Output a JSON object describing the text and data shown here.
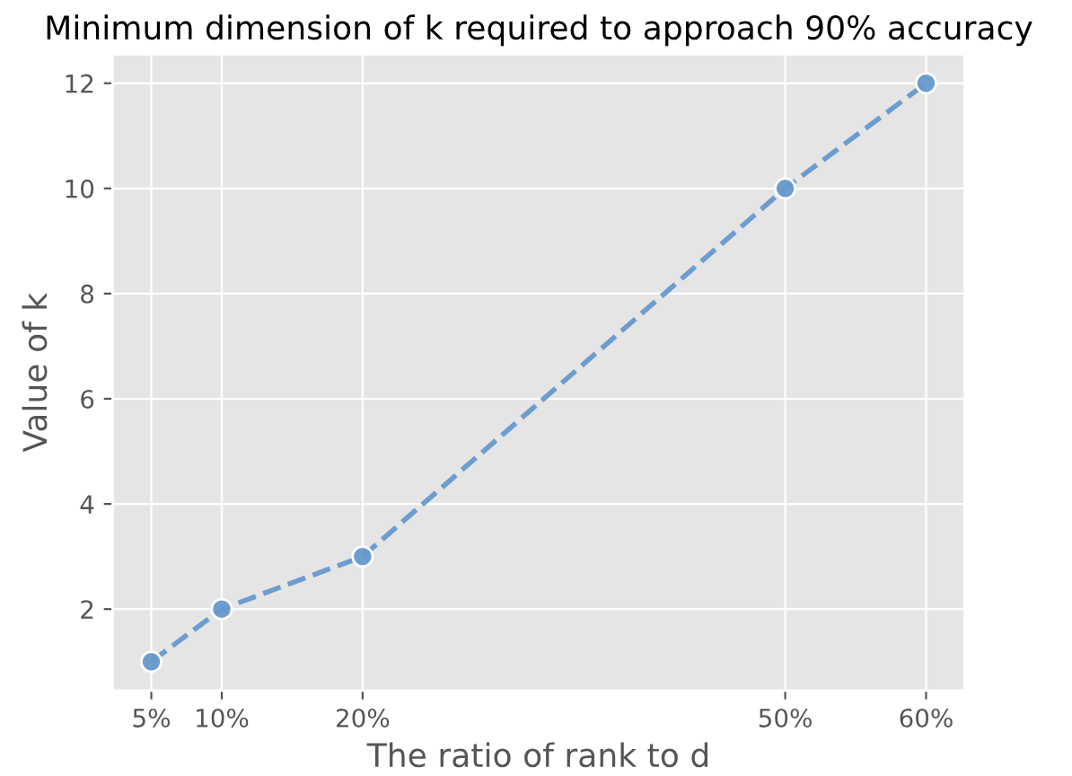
{
  "chart_data": {
    "type": "line",
    "title": "Minimum dimension of k required to approach 90% accuracy",
    "xlabel": "The ratio of rank to d",
    "ylabel": "Value of k",
    "x": [
      5,
      10,
      20,
      50,
      60
    ],
    "series": [
      {
        "color": "#6699cc",
        "values": [
          1,
          2,
          3,
          10,
          12
        ]
      }
    ],
    "xlim": [
      2.25,
      62.75
    ],
    "xticks": [
      {
        "value": 5,
        "label": "5%"
      },
      {
        "value": 10,
        "label": "10%"
      },
      {
        "value": 20,
        "label": "20%"
      },
      {
        "value": 50,
        "label": "50%"
      },
      {
        "value": 60,
        "label": "60%"
      }
    ],
    "ylim": [
      0.45,
      12.55
    ],
    "yticks": [
      2,
      4,
      6,
      8,
      10,
      12
    ],
    "grid": true,
    "marker": "circle",
    "line_style": "dashed"
  }
}
